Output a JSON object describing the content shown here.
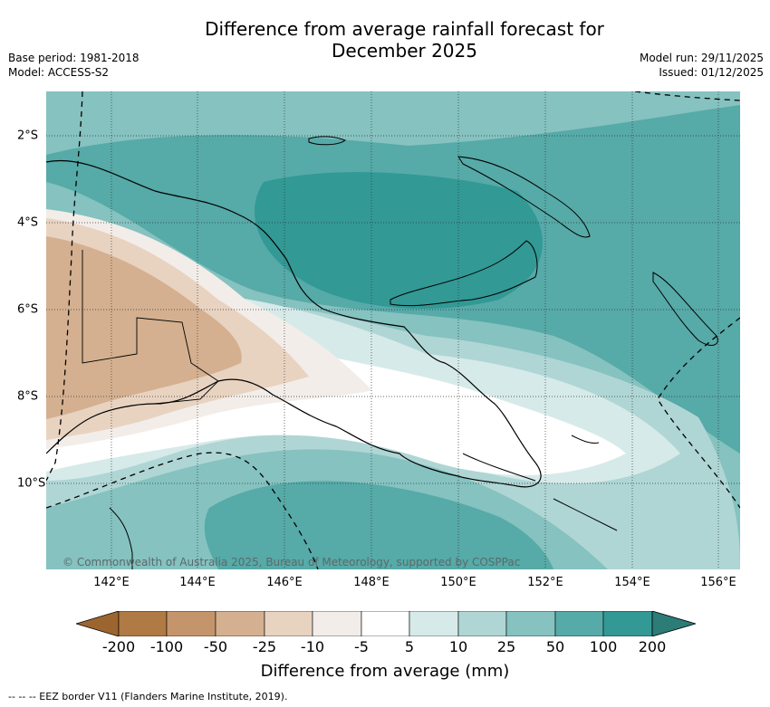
{
  "title_line1": "Difference from average rainfall forecast for",
  "title_line2": "December 2025",
  "meta_left": {
    "base_period": "Base period: 1981-2018",
    "model": "Model: ACCESS-S2"
  },
  "meta_right": {
    "model_run": "Model run: 29/11/2025",
    "issued": "Issued: 01/12/2025"
  },
  "map": {
    "region": "Papua New Guinea",
    "lon_ticks": [
      "142°E",
      "144°E",
      "146°E",
      "148°E",
      "150°E",
      "152°E",
      "154°E",
      "156°E"
    ],
    "lat_ticks": [
      "2°S",
      "4°S",
      "6°S",
      "8°S",
      "10°S"
    ],
    "copyright": "© Commonwealth of Australia 2025, Bureau of Meteorology, supported by COSPPac"
  },
  "colorbar": {
    "labels": [
      "-200",
      "-100",
      "-50",
      "-25",
      "-10",
      "-5",
      "5",
      "10",
      "25",
      "50",
      "100",
      "200"
    ],
    "colors": [
      "#9c6530",
      "#b07a44",
      "#c4956a",
      "#d4b090",
      "#e8d3c1",
      "#f3ede9",
      "#ffffff",
      "#d6eae9",
      "#afd6d5",
      "#85c2c0",
      "#56aaa8",
      "#329995",
      "#2c7c77"
    ],
    "title": "Difference from average (mm)"
  },
  "footer": "-- -- -- EEZ border V11 (Flanders Marine Institute, 2019)."
}
